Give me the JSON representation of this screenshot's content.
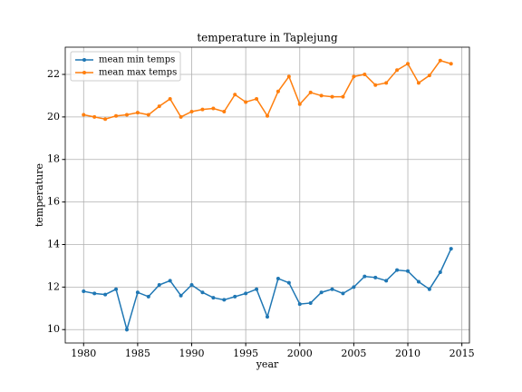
{
  "chart_data": {
    "type": "line",
    "title": "temperature in Taplejung",
    "xlabel": "year",
    "ylabel": "temperature",
    "x": [
      1980,
      1981,
      1982,
      1983,
      1984,
      1985,
      1986,
      1987,
      1988,
      1989,
      1990,
      1991,
      1992,
      1993,
      1994,
      1995,
      1996,
      1997,
      1998,
      1999,
      2000,
      2001,
      2002,
      2003,
      2004,
      2005,
      2006,
      2007,
      2008,
      2009,
      2010,
      2011,
      2012,
      2013,
      2014
    ],
    "series": [
      {
        "name": "mean min temps",
        "color": "#1f77b4",
        "values": [
          11.8,
          11.7,
          11.65,
          11.9,
          10.0,
          11.75,
          11.55,
          12.1,
          12.3,
          11.6,
          12.1,
          11.75,
          11.5,
          11.4,
          11.55,
          11.7,
          11.9,
          10.6,
          12.4,
          12.2,
          11.2,
          11.25,
          11.75,
          11.9,
          11.7,
          12.0,
          12.5,
          12.45,
          12.3,
          12.8,
          12.75,
          12.25,
          11.9,
          12.7,
          13.8
        ]
      },
      {
        "name": "mean max temps",
        "color": "#ff7f0e",
        "values": [
          20.1,
          20.0,
          19.9,
          20.05,
          20.1,
          20.2,
          20.1,
          20.5,
          20.85,
          20.0,
          20.25,
          20.35,
          20.4,
          20.25,
          21.05,
          20.7,
          20.85,
          20.05,
          21.2,
          21.9,
          20.6,
          21.15,
          21.0,
          20.95,
          20.95,
          21.9,
          22.0,
          21.5,
          21.6,
          22.2,
          22.5,
          21.6,
          21.95,
          22.65,
          22.5
        ]
      }
    ],
    "xlim": [
      1978.3,
      2015.7
    ],
    "xticks": [
      1980,
      1985,
      1990,
      1995,
      2000,
      2005,
      2010,
      2015
    ],
    "ylim": [
      9.37,
      23.28
    ],
    "yticks": [
      10,
      12,
      14,
      16,
      18,
      20,
      22
    ],
    "grid": true,
    "legend": "upper left"
  }
}
